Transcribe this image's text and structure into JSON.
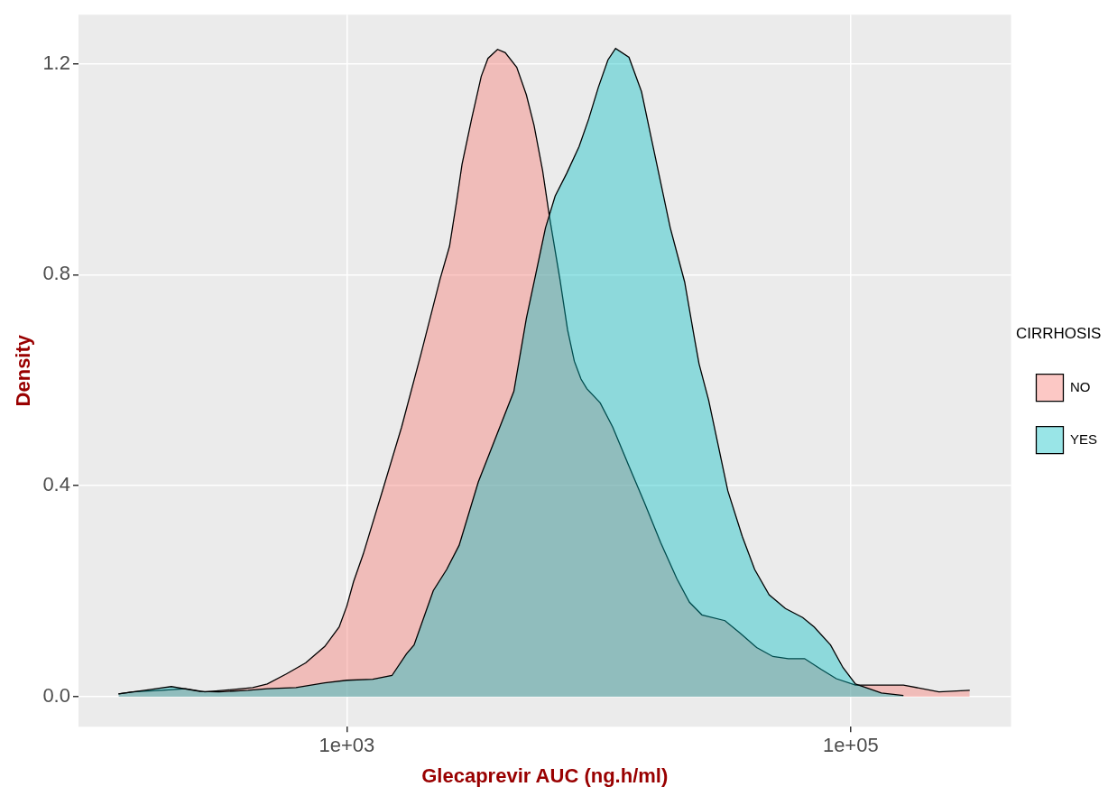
{
  "chart_data": {
    "type": "area",
    "xlabel": "Glecaprevir AUC (ng.h/ml)",
    "ylabel": "Density",
    "legend_title": "CIRRHOSIS",
    "log": "x",
    "grid": true,
    "legend": "right",
    "xlim": [
      86,
      433000
    ],
    "ylim": [
      -0.057,
      1.293
    ],
    "xticks": [
      {
        "value": 1000,
        "label": "1e+03"
      },
      {
        "value": 100000,
        "label": "1e+05"
      }
    ],
    "yticks": [
      {
        "value": 0,
        "label": "0.0"
      },
      {
        "value": 0.4,
        "label": "0.4"
      },
      {
        "value": 0.8,
        "label": "0.8"
      },
      {
        "value": 1.2,
        "label": "1.2"
      }
    ],
    "series": [
      {
        "name": "NO",
        "color": "#f8766d",
        "x": [
          124,
          141,
          184,
          229,
          273,
          325,
          423,
          483,
          575,
          686,
          817,
          932,
          1000,
          1063,
          1161,
          1384,
          1649,
          1965,
          2342,
          2556,
          2719,
          2865,
          3127,
          3415,
          3631,
          3964,
          4253,
          4725,
          5158,
          5534,
          5986,
          6366,
          7013,
          7521,
          7997,
          8502,
          8962,
          10130,
          11360,
          13180,
          15170,
          17610,
          20440,
          22910,
          25670,
          31700,
          36480,
          42340,
          49130,
          56540,
          65640,
          76180,
          87700,
          104500,
          162000,
          224100,
          296900
        ],
        "values": [
          0.005,
          0.009,
          0.012,
          0.015,
          0.009,
          0.012,
          0.017,
          0.024,
          0.043,
          0.064,
          0.095,
          0.132,
          0.172,
          0.218,
          0.27,
          0.39,
          0.511,
          0.648,
          0.791,
          0.854,
          0.935,
          1.009,
          1.095,
          1.176,
          1.21,
          1.227,
          1.221,
          1.193,
          1.141,
          1.083,
          0.997,
          0.911,
          0.791,
          0.695,
          0.636,
          0.602,
          0.584,
          0.557,
          0.511,
          0.437,
          0.368,
          0.292,
          0.223,
          0.179,
          0.155,
          0.144,
          0.12,
          0.093,
          0.076,
          0.072,
          0.072,
          0.052,
          0.034,
          0.022,
          0.022,
          0.009,
          0.012
        ]
      },
      {
        "name": "YES",
        "color": "#00bfc4",
        "x": [
          124,
          201,
          261,
          311,
          405,
          483,
          628,
          817,
          1000,
          1267,
          1510,
          1723,
          1848,
          2203,
          2490,
          2791,
          3325,
          4602,
          5158,
          5632,
          6146,
          6711,
          7457,
          8356,
          9120,
          9957,
          10870,
          11660,
          13180,
          14780,
          16130,
          17610,
          19220,
          21930,
          23930,
          25010,
          27300,
          29810,
          32540,
          37120,
          41590,
          47460,
          55080,
          64500,
          71660,
          83180,
          93240,
          104500,
          132400,
          162000
        ],
        "values": [
          0.005,
          0.019,
          0.01,
          0.009,
          0.012,
          0.015,
          0.017,
          0.026,
          0.031,
          0.033,
          0.04,
          0.081,
          0.098,
          0.201,
          0.241,
          0.287,
          0.407,
          0.579,
          0.717,
          0.803,
          0.889,
          0.949,
          0.992,
          1.043,
          1.095,
          1.155,
          1.207,
          1.229,
          1.212,
          1.147,
          1.061,
          0.975,
          0.889,
          0.786,
          0.682,
          0.631,
          0.562,
          0.476,
          0.39,
          0.304,
          0.241,
          0.193,
          0.167,
          0.15,
          0.132,
          0.098,
          0.055,
          0.024,
          0.007,
          0.002
        ]
      }
    ]
  }
}
